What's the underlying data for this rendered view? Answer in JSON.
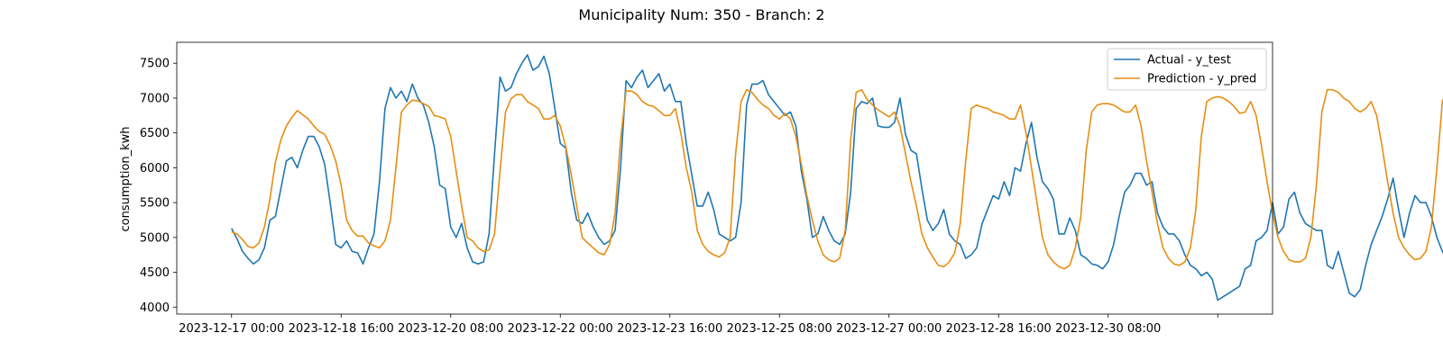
{
  "chart_data": {
    "type": "line",
    "title": "Municipality Num: 350 - Branch: 2",
    "xlabel": "",
    "ylabel": "consumption_kwh",
    "x_start": "2023-12-17 00:00",
    "x_step_hours": 2,
    "x_ticks": [
      "2023-12-17 00:00",
      "2023-12-18 16:00",
      "2023-12-20 08:00",
      "2023-12-22 00:00",
      "2023-12-23 16:00",
      "2023-12-25 08:00",
      "2023-12-27 00:00",
      "2023-12-28 16:00",
      "2023-12-30 08:00",
      ""
    ],
    "xlim": [
      "2023-12-16 04:00",
      "2024-01-01 20:00"
    ],
    "ylim": [
      3900,
      7800
    ],
    "yticks": [
      4000,
      4500,
      5000,
      5500,
      6000,
      6500,
      7000,
      7500
    ],
    "legend_position": "top-right",
    "grid": false,
    "series": [
      {
        "name": "Actual - y_test",
        "color": "#1f77b4",
        "values": [
          5130,
          4980,
          4800,
          4700,
          4620,
          4680,
          4850,
          5250,
          5300,
          5700,
          6100,
          6150,
          6000,
          6250,
          6450,
          6450,
          6300,
          6050,
          5500,
          4900,
          4850,
          4950,
          4800,
          4780,
          4620,
          4850,
          5050,
          5800,
          6850,
          7150,
          7000,
          7100,
          6950,
          7200,
          7000,
          6900,
          6650,
          6300,
          5750,
          5700,
          5150,
          5000,
          5200,
          4850,
          4650,
          4620,
          4650,
          5050,
          6200,
          7300,
          7100,
          7150,
          7350,
          7500,
          7620,
          7400,
          7450,
          7600,
          7350,
          6850,
          6350,
          6280,
          5650,
          5250,
          5200,
          5350,
          5150,
          5000,
          4900,
          4950,
          5100,
          6000,
          7250,
          7150,
          7300,
          7400,
          7150,
          7250,
          7350,
          7100,
          7200,
          6950,
          6950,
          6350,
          5900,
          5450,
          5450,
          5650,
          5400,
          5050,
          5000,
          4950,
          5000,
          5500,
          6900,
          7200,
          7200,
          7250,
          7050,
          6950,
          6850,
          6750,
          6800,
          6600,
          5950,
          5550,
          5000,
          5050,
          5300,
          5100,
          4950,
          4900,
          5050,
          5650,
          6850,
          6950,
          6920,
          7000,
          6600,
          6580,
          6580,
          6650,
          7000,
          6480,
          6250,
          6200,
          5700,
          5250,
          5100,
          5200,
          5400,
          5050,
          4950,
          4900,
          4700,
          4750,
          4850,
          5200,
          5400,
          5600,
          5550,
          5800,
          5600,
          6000,
          5950,
          6350,
          6650,
          6150,
          5800,
          5700,
          5550,
          5050,
          5050,
          5280,
          5100,
          4750,
          4700,
          4620,
          4600,
          4550,
          4650,
          4900,
          5300,
          5650,
          5750,
          5920,
          5920,
          5750,
          5800,
          5350,
          5150,
          5050,
          5050,
          4950,
          4750,
          4600,
          4550,
          4450,
          4500,
          4400,
          4100,
          4150,
          4200,
          4250,
          4300,
          4550,
          4600,
          4950,
          5000,
          5100,
          5500,
          5050,
          5150,
          5550,
          5650,
          5350,
          5200,
          5150,
          5100,
          5100,
          4600,
          4550,
          4800,
          4500,
          4200,
          4150,
          4250,
          4600,
          4900,
          5100,
          5300,
          5550,
          5850,
          5400,
          5000,
          5350,
          5600,
          5500,
          5500,
          5300,
          5000,
          4800,
          4650,
          4700,
          4600,
          4420,
          4400,
          4350,
          4700,
          5500,
          6200,
          6350,
          6500,
          6400,
          6400,
          6200,
          6550,
          6650,
          6250,
          6150,
          6250,
          6050,
          5600,
          5300,
          4950,
          4850,
          5350,
          5100,
          4900,
          4600,
          4500,
          4650,
          4800,
          5250,
          5450,
          5650,
          6050,
          6450,
          6300,
          6850,
          6500,
          6650,
          6150,
          6000,
          5650,
          5350,
          5150,
          4750,
          4650,
          4850,
          4350,
          4150,
          4130,
          4450,
          5000,
          5500,
          5850,
          6200,
          6000,
          6350,
          6100,
          6650,
          6250,
          6400,
          6400,
          5950,
          5600,
          5450,
          5500,
          5050,
          4700,
          4650,
          4850,
          4700,
          4480,
          4350,
          4300,
          4350,
          4600,
          4800,
          5050,
          5350,
          5400,
          5500,
          5600,
          5550,
          5750,
          5800,
          5750,
          5450,
          5750,
          5650,
          5350,
          5050,
          4850,
          4620,
          4620,
          4700,
          4600,
          4500,
          4350,
          4320,
          4400,
          4650,
          5000,
          5200,
          5350,
          5650,
          5700,
          5700,
          5930,
          5650,
          5250,
          4950,
          4950,
          4850,
          4850,
          4780,
          4800
        ]
      },
      {
        "name": "Prediction - y_pred",
        "color": "#e58e13",
        "values": [
          5080,
          5050,
          4970,
          4870,
          4850,
          4920,
          5150,
          5550,
          6080,
          6400,
          6600,
          6720,
          6820,
          6760,
          6700,
          6600,
          6520,
          6480,
          6320,
          6100,
          5750,
          5250,
          5100,
          5020,
          5020,
          4920,
          4880,
          4850,
          4950,
          5250,
          6000,
          6800,
          6900,
          6970,
          6960,
          6920,
          6880,
          6750,
          6730,
          6700,
          6450,
          5950,
          5450,
          5000,
          4950,
          4850,
          4800,
          4820,
          5050,
          5950,
          6800,
          6990,
          7050,
          7050,
          6950,
          6900,
          6850,
          6700,
          6700,
          6750,
          6600,
          6300,
          5900,
          5450,
          5000,
          4920,
          4850,
          4780,
          4750,
          4900,
          5350,
          6400,
          7100,
          7100,
          7050,
          6950,
          6900,
          6880,
          6820,
          6750,
          6750,
          6850,
          6500,
          6000,
          5650,
          5100,
          4900,
          4800,
          4750,
          4720,
          4780,
          5000,
          6200,
          6950,
          7120,
          7080,
          6980,
          6900,
          6850,
          6750,
          6700,
          6780,
          6700,
          6450,
          6050,
          5600,
          5250,
          4950,
          4750,
          4680,
          4650,
          4700,
          5100,
          6400,
          7080,
          7120,
          6980,
          6900,
          6830,
          6780,
          6730,
          6800,
          6600,
          6200,
          5800,
          5450,
          5050,
          4850,
          4720,
          4600,
          4580,
          4650,
          4780,
          5200,
          6100,
          6850,
          6900,
          6870,
          6850,
          6800,
          6780,
          6750,
          6700,
          6700,
          6900,
          6500,
          6000,
          5500,
          5000,
          4750,
          4650,
          4580,
          4550,
          4600,
          4850,
          5300,
          6250,
          6800,
          6900,
          6920,
          6920,
          6900,
          6850,
          6800,
          6800,
          6900,
          6600,
          6100,
          5650,
          5200,
          4850,
          4700,
          4620,
          4600,
          4650,
          4850,
          5400,
          6450,
          6950,
          7000,
          7020,
          7000,
          6950,
          6880,
          6780,
          6800,
          6950,
          6750,
          6300,
          5800,
          5350,
          5000,
          4800,
          4680,
          4650,
          4650,
          4700,
          5000,
          5750,
          6800,
          7120,
          7120,
          7080,
          7000,
          6950,
          6850,
          6800,
          6850,
          6950,
          6750,
          6300,
          5800,
          5350,
          5000,
          4850,
          4750,
          4680,
          4700,
          4800,
          5150,
          6000,
          6950,
          7150,
          7170,
          7100,
          7050,
          7000,
          6950,
          6950,
          7000,
          7100,
          6950,
          6450,
          5950,
          5450,
          5050,
          4850,
          4700,
          4630,
          4650,
          4750,
          5100,
          6000,
          7000,
          7150,
          7170,
          7130,
          7050,
          6950,
          6880,
          6900,
          7000,
          6850,
          6400,
          5900,
          5400,
          5050,
          4850,
          4700,
          4630,
          4650,
          4750,
          5100,
          6000,
          7000,
          7150,
          7180,
          7120,
          7050,
          6950,
          6880,
          6880,
          7000,
          6800,
          6400,
          5900,
          5400,
          5000,
          4780,
          4650,
          4600,
          4600,
          4680,
          5000,
          5850,
          6800,
          6950,
          6920,
          6900,
          6850,
          6800,
          6780,
          6780,
          6800,
          6900,
          6650,
          6250,
          5800,
          5400,
          5000,
          4750,
          4620,
          4520,
          4500,
          4580,
          4850,
          5600,
          6500,
          6820,
          6850,
          6830,
          6820,
          6830,
          6850,
          6950,
          7080,
          6950,
          6500,
          6000,
          5500,
          5000
        ]
      }
    ]
  }
}
